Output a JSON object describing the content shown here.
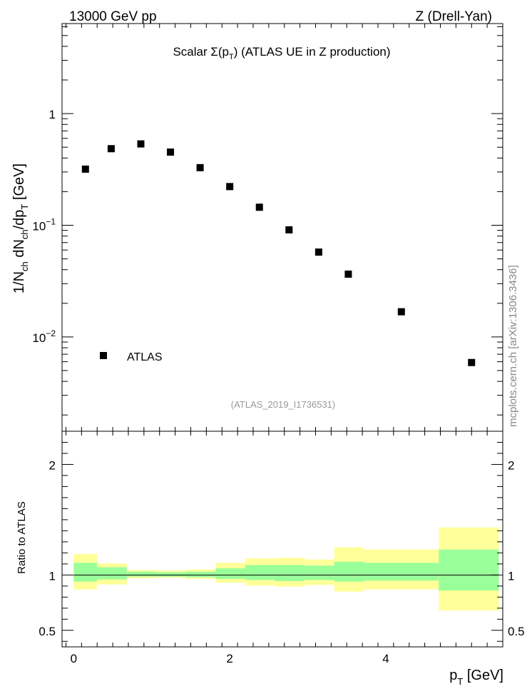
{
  "header": {
    "left": "13000 GeV pp",
    "right": "Z (Drell-Yan)"
  },
  "chart_data": {
    "type": "scatter",
    "title": "Scalar Σ(p_T) (ATLAS UE in Z production)",
    "title_parts": {
      "pre": "Scalar ",
      "sigma": "Σ(p",
      "sigma_sub": "T",
      "post": ") (ATLAS UE in Z production)"
    },
    "analysis_id": "(ATLAS_2019_I1736531)",
    "watermark": "mcplots.cern.ch [arXiv:1306.3436]",
    "xlabel": {
      "main": "p",
      "sub": "T",
      "unit": " [GeV]"
    },
    "ylabel": {
      "p1": "1/N",
      "s1": "ch",
      "p2": " dN",
      "s2": "ch",
      "p3": "/dp",
      "s3": "T",
      "p4": " [GeV]"
    },
    "xlim": [
      -0.15,
      5.5
    ],
    "ylim": [
      0.00143,
      6.4
    ],
    "y_scale": "log",
    "x_ticks": [
      0,
      2,
      4
    ],
    "y_tick_labels": [
      {
        "value": 1,
        "base": "1",
        "exp": ""
      },
      {
        "value": 0.1,
        "base": "10",
        "exp": "−1"
      },
      {
        "value": 0.01,
        "base": "10",
        "exp": "−2"
      }
    ],
    "legend": {
      "label": "ATLAS",
      "placement": "lower-left"
    },
    "series": [
      {
        "name": "ATLAS",
        "x": [
          0.15,
          0.48,
          0.86,
          1.24,
          1.62,
          2.0,
          2.38,
          2.76,
          3.14,
          3.52,
          4.2,
          5.1
        ],
        "y": [
          0.318,
          0.485,
          0.535,
          0.452,
          0.328,
          0.222,
          0.145,
          0.091,
          0.0575,
          0.0365,
          0.0168,
          0.0059
        ]
      }
    ],
    "ratio": {
      "ylabel": "Ratio to ATLAS",
      "ylim": [
        0.35,
        2.3
      ],
      "y_ticks": [
        0.5,
        1,
        2
      ],
      "y_tick_labels": [
        "0.5",
        "1",
        "2"
      ],
      "bin_edges": [
        0,
        0.3,
        0.68,
        1.06,
        1.44,
        1.82,
        2.2,
        2.58,
        2.96,
        3.34,
        3.72,
        4.68,
        5.45
      ],
      "inner_band_low": [
        0.94,
        0.96,
        0.985,
        0.985,
        0.98,
        0.965,
        0.955,
        0.945,
        0.955,
        0.94,
        0.95,
        0.86
      ],
      "inner_band_high": [
        1.11,
        1.07,
        1.03,
        1.025,
        1.03,
        1.06,
        1.09,
        1.09,
        1.085,
        1.12,
        1.11,
        1.23
      ],
      "outer_band_low": [
        0.87,
        0.915,
        0.97,
        0.975,
        0.965,
        0.93,
        0.905,
        0.895,
        0.91,
        0.85,
        0.87,
        0.68
      ],
      "outer_band_high": [
        1.19,
        1.105,
        1.045,
        1.04,
        1.05,
        1.11,
        1.15,
        1.155,
        1.14,
        1.25,
        1.23,
        1.43
      ],
      "colors": {
        "inner": "#99ff99",
        "outer": "#ffff99"
      }
    }
  }
}
